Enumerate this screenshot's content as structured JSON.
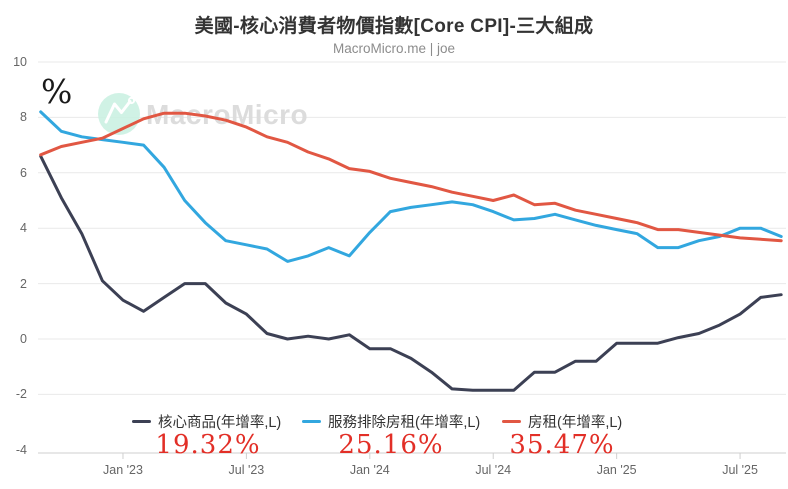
{
  "header": {
    "title": "美國-核心消費者物價指數[Core CPI]-三大組成",
    "subtitle": "MacroMicro.me | joe"
  },
  "watermark": {
    "text": "MacroMicro",
    "logo_color": "#c8f0e1"
  },
  "axes": {
    "y_unit": "%",
    "y_ticks": [
      10,
      8,
      6,
      4,
      2,
      0,
      -2,
      -4
    ],
    "x_ticks": [
      "Jan '23",
      "Jul '23",
      "Jan '24",
      "Jul '24",
      "Jan '25",
      "Jul '25"
    ]
  },
  "legend": {
    "items": [
      {
        "label": "核心商品(年增率,L)",
        "value": "19.32%",
        "color": "#3c4054"
      },
      {
        "label": "服務排除房租(年增率,L)",
        "value": "25.16%",
        "color": "#32a7df"
      },
      {
        "label": "房租(年增率,L)",
        "value": "35.47%",
        "color": "#e15743"
      }
    ],
    "value_color": "#e22f27"
  },
  "chart_data": {
    "type": "line",
    "title": "美國-核心消費者物價指數[Core CPI]-三大組成",
    "y_unit": "%",
    "ylim": [
      -4,
      10
    ],
    "grid": true,
    "legend_position": "bottom",
    "x_monthly_range": [
      "2022-09",
      "2025-09"
    ],
    "x_tick_labels": [
      "Jan '23",
      "Jul '23",
      "Jan '24",
      "Jul '24",
      "Jan '25",
      "Jul '25"
    ],
    "x_tick_indices": [
      4,
      10,
      16,
      22,
      28,
      34
    ],
    "grid_values": [
      10,
      8,
      6,
      4,
      2,
      0,
      -2
    ],
    "series": [
      {
        "name": "核心商品(年增率,L)",
        "color": "#3c4054",
        "weight_annotation": "19.32%",
        "values": [
          6.6,
          5.1,
          3.8,
          2.1,
          1.4,
          1.0,
          1.5,
          2.0,
          2.0,
          1.3,
          0.9,
          0.2,
          0.0,
          0.1,
          0.0,
          0.15,
          -0.35,
          -0.35,
          -0.7,
          -1.2,
          -1.8,
          -1.85,
          -1.85,
          -1.85,
          -1.2,
          -1.2,
          -0.8,
          -0.8,
          -0.15,
          -0.15,
          -0.15,
          0.05,
          0.2,
          0.5,
          0.9,
          1.5,
          1.6
        ]
      },
      {
        "name": "服務排除房租(年增率,L)",
        "color": "#32a7df",
        "weight_annotation": "25.16%",
        "values": [
          8.2,
          7.5,
          7.3,
          7.2,
          7.1,
          7.0,
          6.2,
          5.0,
          4.2,
          3.55,
          3.4,
          3.25,
          2.8,
          3.0,
          3.3,
          3.0,
          3.85,
          4.6,
          4.75,
          4.85,
          4.95,
          4.85,
          4.6,
          4.3,
          4.35,
          4.5,
          4.3,
          4.1,
          3.95,
          3.8,
          3.3,
          3.3,
          3.55,
          3.7,
          4.0,
          4.0,
          3.7
        ]
      },
      {
        "name": "房租(年增率,L)",
        "color": "#e15743",
        "weight_annotation": "35.47%",
        "values": [
          6.65,
          6.95,
          7.1,
          7.25,
          7.6,
          7.95,
          8.15,
          8.15,
          8.05,
          7.9,
          7.65,
          7.3,
          7.1,
          6.75,
          6.5,
          6.15,
          6.05,
          5.8,
          5.65,
          5.5,
          5.3,
          5.15,
          5.0,
          5.2,
          4.85,
          4.9,
          4.65,
          4.5,
          4.35,
          4.2,
          3.95,
          3.95,
          3.85,
          3.75,
          3.65,
          3.6,
          3.55
        ]
      }
    ]
  }
}
